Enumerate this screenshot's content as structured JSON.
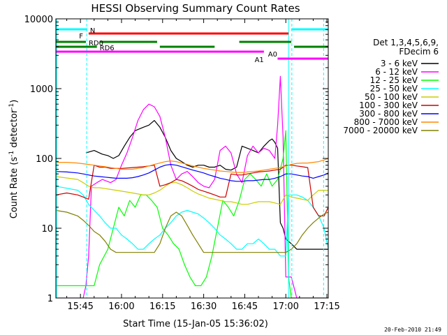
{
  "chart_data": {
    "type": "line",
    "title": "HESSI Observing Summary Count Rates",
    "xlabel": "Start Time (15-Jan-05 15:36:02)",
    "ylabel": "Count Rate (s^-1 detector^-1)",
    "ylabel_parts": [
      "Count Rate (s",
      "-1",
      " detector",
      "-1",
      ")"
    ],
    "yscale": "log",
    "ylim": [
      1,
      10000
    ],
    "xlim_minutes": [
      36.03,
      135.5
    ],
    "x_ticks": [
      {
        "m": 45,
        "label": "15:45"
      },
      {
        "m": 60,
        "label": "16:00"
      },
      {
        "m": 75,
        "label": "16:15"
      },
      {
        "m": 90,
        "label": "16:30"
      },
      {
        "m": 105,
        "label": "16:45"
      },
      {
        "m": 120,
        "label": "17:00"
      },
      {
        "m": 135,
        "label": "17:15"
      }
    ],
    "y_ticks": [
      {
        "v": 1,
        "label": "1"
      },
      {
        "v": 10,
        "label": "10"
      },
      {
        "v": 100,
        "label": "100"
      },
      {
        "v": 1000,
        "label": "1000"
      },
      {
        "v": 10000,
        "label": "10000"
      }
    ],
    "legend_header": [
      "Det 1,3,4,5,6,9,",
      "FDecim 6"
    ],
    "footer_date": "20-Feb-2010 21:49",
    "series": [
      {
        "name": "3 - 6 keV",
        "color": "#000000",
        "x": [
          47,
          50,
          53,
          55,
          57,
          59,
          61,
          63,
          65,
          68,
          70,
          72,
          74,
          76,
          78,
          80,
          82,
          84,
          86,
          88,
          90,
          92,
          94,
          96,
          98,
          100,
          102,
          104,
          106,
          108,
          110,
          112,
          114,
          115,
          116,
          117,
          118,
          119,
          120,
          122,
          124,
          126,
          128,
          130,
          132,
          134,
          135.5
        ],
        "y": [
          120,
          130,
          115,
          110,
          100,
          110,
          150,
          200,
          250,
          280,
          300,
          350,
          280,
          200,
          130,
          100,
          90,
          80,
          75,
          80,
          80,
          75,
          75,
          80,
          70,
          68,
          75,
          150,
          140,
          130,
          120,
          150,
          180,
          190,
          170,
          140,
          12,
          10,
          7,
          6,
          5,
          5,
          5,
          5,
          5,
          5,
          5
        ]
      },
      {
        "name": "6 - 12 keV",
        "color": "#ff00ff",
        "x": [
          36.1,
          44,
          46,
          47,
          48,
          49,
          51,
          53,
          56,
          58,
          60,
          62,
          64,
          66,
          68,
          70,
          72,
          74,
          76,
          78,
          80,
          82,
          84,
          86,
          88,
          90,
          92,
          94,
          96,
          98,
          100,
          102,
          104,
          106,
          108,
          110,
          112,
          114,
          116,
          117,
          118,
          119,
          120,
          121,
          122,
          124,
          126,
          128,
          130,
          132,
          134,
          135.5
        ],
        "y": [
          1,
          1,
          1,
          1.5,
          4,
          40,
          45,
          50,
          45,
          50,
          80,
          120,
          200,
          350,
          500,
          600,
          550,
          400,
          200,
          80,
          50,
          60,
          65,
          55,
          45,
          40,
          38,
          50,
          130,
          150,
          120,
          60,
          45,
          110,
          150,
          120,
          140,
          130,
          100,
          300,
          1500,
          200,
          2,
          2,
          2,
          1,
          1,
          1,
          1,
          1,
          1,
          1
        ]
      },
      {
        "name": "12 - 25 keV",
        "color": "#00ff00",
        "x": [
          36.1,
          50,
          52,
          55,
          57,
          59,
          61,
          63,
          65,
          67,
          69,
          71,
          73,
          75,
          77,
          79,
          81,
          83,
          85,
          87,
          89,
          91,
          93,
          95,
          97,
          99,
          101,
          103,
          105,
          107,
          109,
          111,
          113,
          115,
          117,
          119,
          120,
          121,
          122,
          124,
          126,
          128,
          130,
          132,
          134,
          135.5
        ],
        "y": [
          1.5,
          1.5,
          3,
          5,
          10,
          20,
          15,
          25,
          20,
          30,
          30,
          25,
          20,
          10,
          8,
          6,
          5,
          3,
          2,
          1.5,
          1.5,
          2,
          4,
          10,
          25,
          20,
          15,
          25,
          50,
          60,
          50,
          40,
          60,
          40,
          50,
          100,
          250,
          2,
          1,
          1,
          1,
          1,
          1,
          1,
          1,
          1
        ]
      },
      {
        "name": "25 - 50 keV",
        "color": "#00ffff",
        "x": [
          36.1,
          44,
          46,
          48,
          50,
          52,
          54,
          56,
          58,
          60,
          62,
          64,
          66,
          68,
          70,
          72,
          74,
          76,
          78,
          80,
          82,
          84,
          86,
          88,
          90,
          92,
          94,
          96,
          98,
          100,
          102,
          104,
          106,
          108,
          110,
          112,
          114,
          116,
          118,
          119,
          120,
          121,
          122,
          124,
          126,
          128,
          130,
          132,
          134,
          135.5
        ],
        "y": [
          40,
          35,
          30,
          22,
          18,
          15,
          12,
          10,
          10,
          8,
          7,
          6,
          5,
          5,
          6,
          7,
          8,
          10,
          12,
          15,
          17,
          18,
          17,
          16,
          14,
          12,
          10,
          8,
          7,
          6,
          5,
          5,
          6,
          6,
          7,
          6,
          5,
          5,
          4,
          4,
          4,
          30,
          30,
          30,
          28,
          25,
          20,
          15,
          10,
          5
        ]
      },
      {
        "name": "50 - 100 keV",
        "color": "#cccc00",
        "x": [
          36.1,
          44,
          46,
          48,
          50,
          52,
          54,
          56,
          58,
          60,
          62,
          64,
          66,
          68,
          70,
          72,
          74,
          76,
          78,
          80,
          82,
          84,
          86,
          88,
          90,
          92,
          94,
          96,
          98,
          100,
          102,
          104,
          106,
          108,
          110,
          112,
          114,
          116,
          118,
          120,
          122,
          124,
          126,
          128,
          130,
          132,
          134,
          135.5
        ],
        "y": [
          55,
          50,
          45,
          40,
          38,
          38,
          37,
          36,
          35,
          34,
          33,
          32,
          31,
          30,
          30,
          32,
          35,
          40,
          45,
          45,
          42,
          38,
          34,
          31,
          29,
          27,
          26,
          25,
          24,
          24,
          23,
          22,
          22,
          23,
          24,
          24,
          24,
          23,
          22,
          30,
          28,
          27,
          26,
          25,
          30,
          35,
          35,
          35
        ]
      },
      {
        "name": "100 - 300 keV",
        "color": "#cc0000",
        "x": [
          36.1,
          40,
          44,
          46,
          48,
          50,
          52,
          54,
          56,
          58,
          60,
          62,
          64,
          66,
          68,
          70,
          72,
          74,
          76,
          78,
          80,
          82,
          84,
          86,
          88,
          90,
          92,
          94,
          96,
          98,
          100,
          102,
          104,
          106,
          108,
          110,
          112,
          114,
          116,
          118,
          120,
          122,
          124,
          126,
          128,
          130,
          132,
          134,
          135.5
        ],
        "y": [
          30,
          32,
          30,
          28,
          26,
          80,
          75,
          75,
          72,
          72,
          72,
          73,
          74,
          75,
          76,
          78,
          80,
          40,
          42,
          45,
          50,
          48,
          44,
          40,
          36,
          34,
          32,
          30,
          28,
          28,
          60,
          58,
          58,
          60,
          62,
          64,
          65,
          66,
          68,
          70,
          80,
          80,
          78,
          76,
          74,
          20,
          15,
          15,
          20
        ]
      },
      {
        "name": "300 - 800 keV",
        "color": "#0000ff",
        "x": [
          36.1,
          40,
          44,
          46,
          48,
          50,
          52,
          54,
          56,
          58,
          60,
          62,
          64,
          66,
          68,
          70,
          72,
          74,
          76,
          78,
          80,
          82,
          84,
          86,
          88,
          90,
          92,
          94,
          96,
          98,
          100,
          102,
          104,
          106,
          108,
          110,
          112,
          114,
          116,
          118,
          120,
          122,
          124,
          126,
          128,
          130,
          132,
          134,
          135.5
        ],
        "y": [
          65,
          64,
          62,
          60,
          58,
          56,
          55,
          54,
          53,
          52,
          52,
          52,
          53,
          55,
          58,
          62,
          68,
          75,
          80,
          82,
          80,
          76,
          72,
          68,
          65,
          62,
          58,
          55,
          52,
          50,
          48,
          47,
          47,
          48,
          48,
          49,
          50,
          50,
          52,
          55,
          60,
          60,
          58,
          56,
          55,
          52,
          55,
          58,
          62
        ]
      },
      {
        "name": "800 - 7000 keV",
        "color": "#ff8800",
        "x": [
          36.1,
          40,
          44,
          46,
          48,
          50,
          52,
          54,
          56,
          58,
          60,
          62,
          64,
          66,
          68,
          70,
          72,
          74,
          76,
          78,
          80,
          82,
          84,
          86,
          88,
          90,
          92,
          94,
          96,
          98,
          100,
          102,
          104,
          106,
          108,
          110,
          112,
          114,
          116,
          118,
          120,
          122,
          124,
          126,
          128,
          130,
          132,
          134,
          135.5
        ],
        "y": [
          88,
          88,
          86,
          84,
          82,
          80,
          78,
          76,
          74,
          72,
          70,
          70,
          70,
          72,
          74,
          78,
          82,
          86,
          90,
          92,
          90,
          86,
          82,
          78,
          75,
          72,
          70,
          68,
          66,
          65,
          64,
          63,
          63,
          64,
          65,
          66,
          68,
          70,
          72,
          74,
          78,
          82,
          85,
          86,
          86,
          88,
          90,
          95,
          100
        ]
      },
      {
        "name": "7000 - 20000 keV",
        "color": "#808000",
        "x": [
          36.1,
          40,
          44,
          46,
          48,
          50,
          52,
          54,
          56,
          58,
          60,
          62,
          64,
          66,
          68,
          70,
          72,
          74,
          76,
          78,
          80,
          82,
          84,
          86,
          88,
          90,
          92,
          94,
          96,
          98,
          100,
          102,
          104,
          106,
          108,
          110,
          112,
          114,
          116,
          118,
          120,
          122,
          124,
          126,
          128,
          130,
          132,
          134,
          135.5
        ],
        "y": [
          18,
          17,
          15,
          13,
          11,
          9,
          8,
          6.5,
          5,
          4.5,
          4.5,
          4.5,
          4.5,
          4.5,
          4.5,
          4.5,
          4.5,
          6,
          10,
          15,
          17,
          15,
          11,
          8,
          6,
          4.5,
          4.5,
          4.5,
          4.5,
          4.5,
          4.5,
          4.5,
          4.5,
          4.5,
          4.5,
          4.5,
          4.5,
          4.5,
          4.5,
          4.5,
          4.5,
          5,
          6,
          8,
          10,
          12,
          14,
          16,
          17
        ]
      }
    ],
    "flags": [
      {
        "label": "N",
        "color": "#00ffff",
        "segments": [
          [
            36.1,
            47.5
          ],
          [
            122,
            135.5
          ]
        ],
        "label_at": 48
      },
      {
        "label": "F",
        "color": "#ff0000",
        "segments": [
          [
            48,
            121
          ]
        ],
        "label_at": 47
      },
      {
        "label": "RD0",
        "color": "#008000",
        "segments": [
          [
            36.1,
            47
          ],
          [
            52,
            73
          ],
          [
            103,
            122
          ]
        ],
        "label_at": 47.5
      },
      {
        "label": "RD6",
        "color": "#008000",
        "segments": [
          [
            36.1,
            51
          ],
          [
            74,
            94
          ],
          [
            123,
            135.5
          ]
        ],
        "label_at": 51.5
      },
      {
        "label": "A0",
        "color": "#ff00ff",
        "segments": [
          [
            36.1,
            112
          ]
        ],
        "label_at": 113
      },
      {
        "label": "A1",
        "color": "#ff00ff",
        "segments": [
          [
            117,
            135.5
          ]
        ],
        "label_at": 113
      }
    ],
    "vertical_markers": [
      {
        "m": 36.3,
        "color": "#00ffff",
        "style": "solid"
      },
      {
        "m": 47.3,
        "color": "#00ffff",
        "style": "dashed"
      },
      {
        "m": 121,
        "color": "#00ffff",
        "style": "solid"
      },
      {
        "m": 122.2,
        "color": "#00ffff",
        "style": "dashed"
      },
      {
        "m": 133.8,
        "color": "#00ffff",
        "style": "dashed"
      }
    ]
  }
}
